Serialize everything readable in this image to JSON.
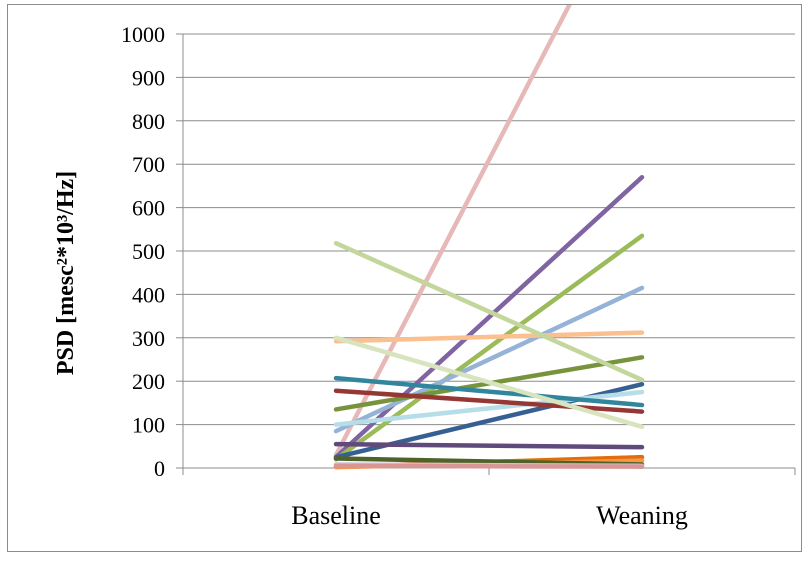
{
  "chart_data": {
    "type": "line",
    "categories": [
      "Baseline",
      "Weaning"
    ],
    "ylabel": "PSD [mesc²*10³/Hz]",
    "ylim": [
      0,
      1000
    ],
    "yticks": [
      0,
      100,
      200,
      300,
      400,
      500,
      600,
      700,
      800,
      900,
      1000
    ],
    "grid": true,
    "series": [
      {
        "color": "#e6b9b8",
        "values": [
          30,
          1390
        ]
      },
      {
        "color": "#8064a2",
        "values": [
          25,
          670
        ]
      },
      {
        "color": "#9bbb59",
        "values": [
          20,
          535
        ]
      },
      {
        "color": "#95b3d7",
        "values": [
          85,
          415
        ]
      },
      {
        "color": "#fac090",
        "values": [
          292,
          312
        ]
      },
      {
        "color": "#77933c",
        "values": [
          135,
          255
        ]
      },
      {
        "color": "#c3d69b",
        "values": [
          518,
          203
        ]
      },
      {
        "color": "#376092",
        "values": [
          25,
          193
        ]
      },
      {
        "color": "#b7dee8",
        "values": [
          100,
          175
        ]
      },
      {
        "color": "#31859c",
        "values": [
          207,
          145
        ]
      },
      {
        "color": "#953735",
        "values": [
          178,
          130
        ]
      },
      {
        "color": "#d7e4bd",
        "values": [
          300,
          95
        ]
      },
      {
        "color": "#604a7b",
        "values": [
          55,
          48
        ]
      },
      {
        "color": "#e46c0a",
        "values": [
          3,
          25
        ]
      },
      {
        "color": "#f79646",
        "values": [
          2,
          17
        ]
      },
      {
        "color": "#4f6228",
        "values": [
          22,
          8
        ]
      },
      {
        "color": "#ccc1da",
        "values": [
          8,
          5
        ]
      },
      {
        "color": "#d99694",
        "values": [
          5,
          3
        ]
      }
    ]
  }
}
